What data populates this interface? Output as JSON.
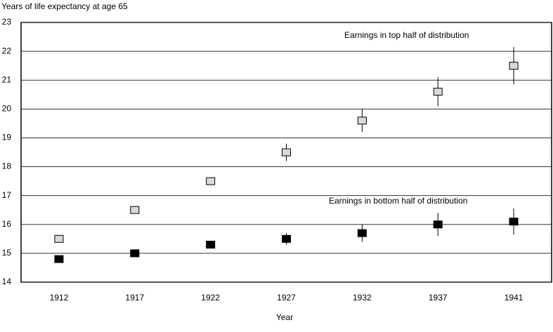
{
  "chart_data": {
    "type": "scatter",
    "y_label": "Years of life expectancy at age 65",
    "x_label": "Year",
    "categories": [
      "1912",
      "1917",
      "1922",
      "1927",
      "1932",
      "1937",
      "1941"
    ],
    "series": [
      {
        "name": "Earnings in top half of distribution",
        "color": "#d9d9d9",
        "values": [
          15.5,
          16.5,
          17.5,
          18.5,
          19.6,
          20.6,
          21.5
        ],
        "errors": [
          null,
          null,
          null,
          0.3,
          0.4,
          0.5,
          0.65
        ]
      },
      {
        "name": "Earnings in bottom half of distribution",
        "color": "#000000",
        "values": [
          14.8,
          15.0,
          15.3,
          15.5,
          15.7,
          16.0,
          16.1
        ],
        "errors": [
          null,
          null,
          null,
          0.2,
          0.3,
          0.4,
          0.45
        ]
      }
    ],
    "ylim": [
      14,
      23
    ],
    "yticks": [
      14,
      15,
      16,
      17,
      18,
      19,
      20,
      21,
      22,
      23
    ],
    "grid": true
  }
}
